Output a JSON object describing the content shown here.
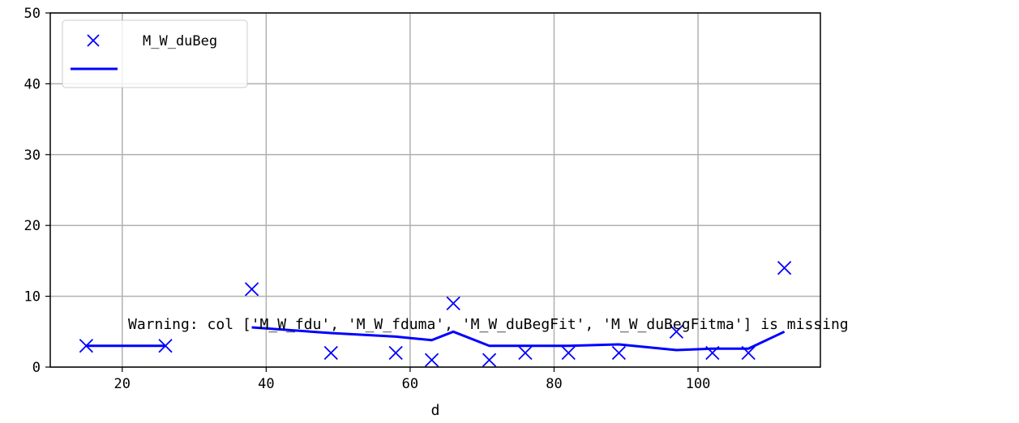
{
  "chart_data": {
    "type": "scatter",
    "xlabel": "d",
    "ylabel": "",
    "xlim": [
      10,
      117
    ],
    "ylim": [
      0,
      50
    ],
    "xticks": [
      20,
      40,
      60,
      80,
      100
    ],
    "yticks": [
      0,
      10,
      20,
      30,
      40,
      50
    ],
    "grid": true,
    "legend_placement": "top-left",
    "series": [
      {
        "name": "M_W_duBeg",
        "kind": "scatter",
        "marker": "x",
        "color": "#0000ff",
        "x": [
          15,
          26,
          38,
          49,
          58,
          63,
          66,
          71,
          76,
          82,
          89,
          97,
          102,
          107,
          112
        ],
        "y": [
          3,
          3,
          11,
          2,
          2,
          1,
          9,
          1,
          2,
          2,
          2,
          5,
          2,
          2,
          14
        ]
      },
      {
        "name": "",
        "kind": "line",
        "color": "#0000ff",
        "segments": [
          {
            "x": [
              15,
              26
            ],
            "y": [
              3,
              3
            ]
          },
          {
            "x": [
              38,
              49,
              58,
              63,
              66,
              71,
              76,
              82,
              89,
              97,
              102,
              107,
              112
            ],
            "y": [
              5.6,
              4.8,
              4.3,
              3.8,
              5.0,
              3.0,
              3.0,
              3.0,
              3.2,
              2.4,
              2.6,
              2.6,
              5.0
            ]
          }
        ]
      }
    ],
    "annotation": "Warning: col ['M_W_fdu', 'M_W_fduma', 'M_W_duBegFit', 'M_W_duBegFitma'] is missing"
  }
}
